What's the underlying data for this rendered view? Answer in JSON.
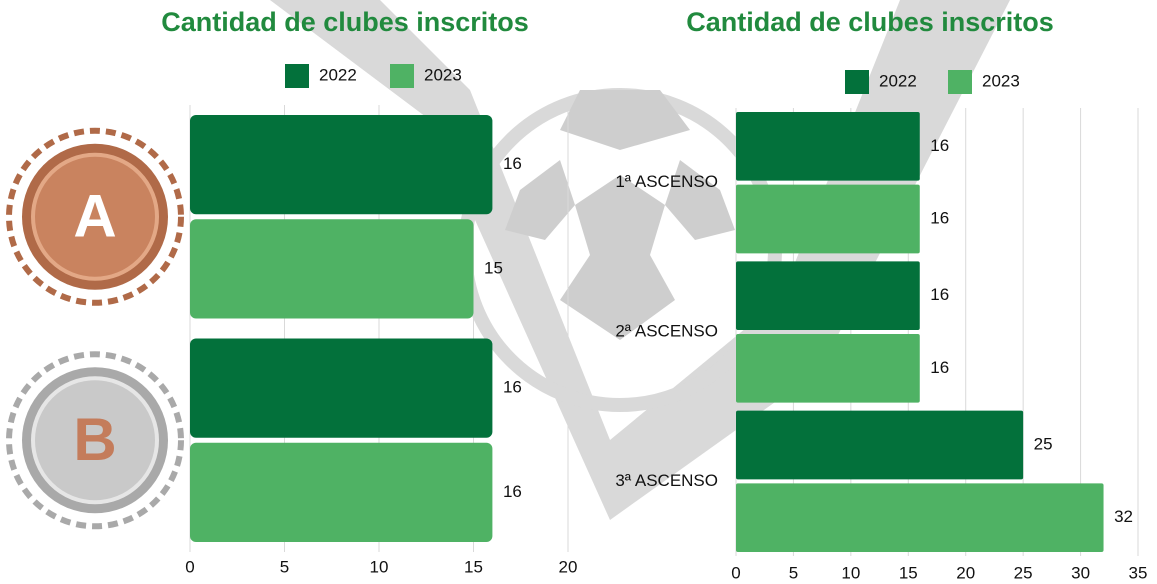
{
  "chart_data": [
    {
      "type": "bar",
      "orientation": "horizontal",
      "title": "Cantidad de clubes inscritos",
      "categories": [
        "A",
        "B"
      ],
      "series": [
        {
          "name": "2022",
          "color": "#03713b",
          "values": [
            16,
            16
          ]
        },
        {
          "name": "2023",
          "color": "#4fb264",
          "values": [
            15,
            16
          ]
        }
      ],
      "xlim": [
        0,
        20
      ],
      "xticks": [
        0,
        5,
        10,
        15,
        20
      ],
      "grid": true
    },
    {
      "type": "bar",
      "orientation": "horizontal",
      "title": "Cantidad de clubes inscritos",
      "categories": [
        "1ª ASCENSO",
        "2ª ASCENSO",
        "3ª ASCENSO"
      ],
      "series": [
        {
          "name": "2022",
          "color": "#03713b",
          "values": [
            16,
            16,
            25
          ]
        },
        {
          "name": "2023",
          "color": "#4fb264",
          "values": [
            16,
            16,
            32
          ]
        }
      ],
      "xlim": [
        0,
        35
      ],
      "xticks": [
        0,
        5,
        10,
        15,
        20,
        25,
        30,
        35
      ],
      "grid": true
    }
  ]
}
